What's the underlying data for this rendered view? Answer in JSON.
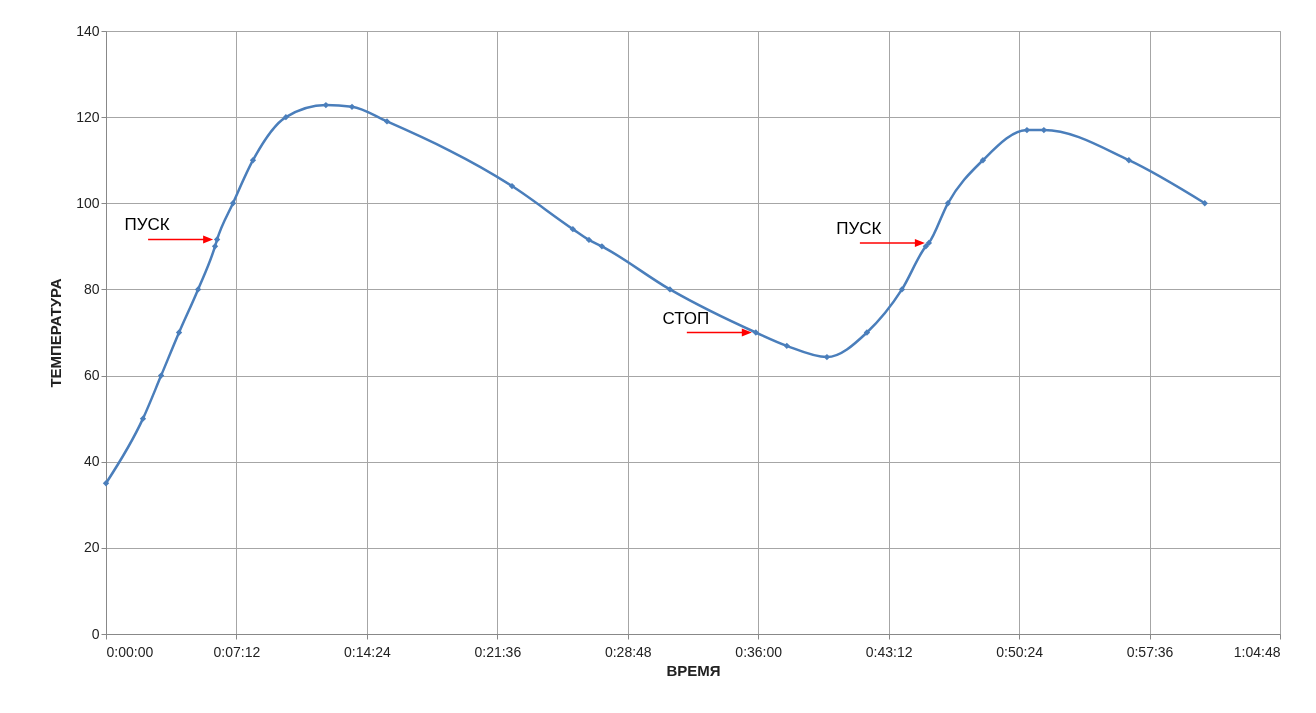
{
  "chart_data": {
    "type": "line",
    "xlabel": "ВРЕМЯ",
    "ylabel": "ТЕМПЕРАТУРА",
    "x": [
      0,
      0.034,
      0.0507,
      0.0672,
      0.0847,
      0.1003,
      0.1022,
      0.1168,
      0.1352,
      0.1655,
      0.2023,
      0.2263,
      0.2585,
      0.3735,
      0.4295,
      0.4443,
      0.4562,
      0.5188,
      0.5978,
      0.6263,
      0.6632,
      0.7,
      0.7322,
      0.7542,
      0.757,
      0.7745,
      0.8067,
      0.8472,
      0.8628,
      0.941,
      1.0108
    ],
    "series": [
      {
        "color": "#4a7ebb",
        "values": [
          35,
          50,
          60,
          70,
          80,
          90,
          91.6,
          100,
          110,
          120,
          122.8,
          122.4,
          119,
          104,
          94,
          91.5,
          90,
          80,
          70,
          66.9,
          64.3,
          70,
          80,
          90,
          90.8,
          100,
          110,
          117,
          117,
          110,
          100
        ]
      }
    ],
    "xlim": [
      0,
      1.08
    ],
    "xticks": [
      {
        "value": 0,
        "label": "0:00:00"
      },
      {
        "value": 0.12,
        "label": "0:07:12"
      },
      {
        "value": 0.24,
        "label": "0:14:24"
      },
      {
        "value": 0.36,
        "label": "0:21:36"
      },
      {
        "value": 0.48,
        "label": "0:28:48"
      },
      {
        "value": 0.6,
        "label": "0:36:00"
      },
      {
        "value": 0.72,
        "label": "0:43:12"
      },
      {
        "value": 0.84,
        "label": "0:50:24"
      },
      {
        "value": 0.96,
        "label": "0:57:36"
      },
      {
        "value": 1.08,
        "label": "1:04:48"
      }
    ],
    "ylim": [
      0,
      140
    ],
    "yticks": [
      0,
      20,
      40,
      60,
      80,
      100,
      120,
      140
    ],
    "grid": true,
    "marker": "diamond",
    "annotations": [
      {
        "text": "ПУСК",
        "x": 0.1022,
        "y": 91.6
      },
      {
        "text": "СТОП",
        "x": 0.5978,
        "y": 70
      },
      {
        "text": "ПУСК",
        "x": 0.757,
        "y": 90.8
      }
    ]
  }
}
